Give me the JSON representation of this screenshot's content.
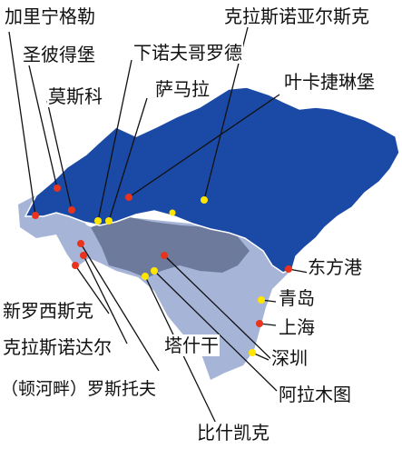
{
  "colors": {
    "russia": "#1b4aa6",
    "russia_edge": "#ffffff",
    "central_asia": "#6d7a9c",
    "china_and_west": "#a6b4d8",
    "leader_line": "#111111",
    "city_red": "#e8341c",
    "city_yellow": "#ffe600"
  },
  "labels": {
    "arkhangelsk": "加里宁格勒",
    "st_petersburg": "圣彼得堡",
    "moscow": "莫斯科",
    "nizhny_novgorod": "下诺夫哥罗德",
    "samara": "萨马拉",
    "krasnoyarsk": "克拉斯诺亚尔斯克",
    "yekaterinburg": "叶卡捷琳堡",
    "vostochny": "东方港",
    "qingdao": "青岛",
    "shanghai": "上海",
    "shenzhen": "深圳",
    "almaty": "阿拉木图",
    "bishkek": "比什凯克",
    "tashkent": "塔什干",
    "novorossiysk": "新罗西斯克",
    "krasnodar": "克拉斯诺达尔",
    "rostov": "（顿河畔）罗斯托夫"
  }
}
